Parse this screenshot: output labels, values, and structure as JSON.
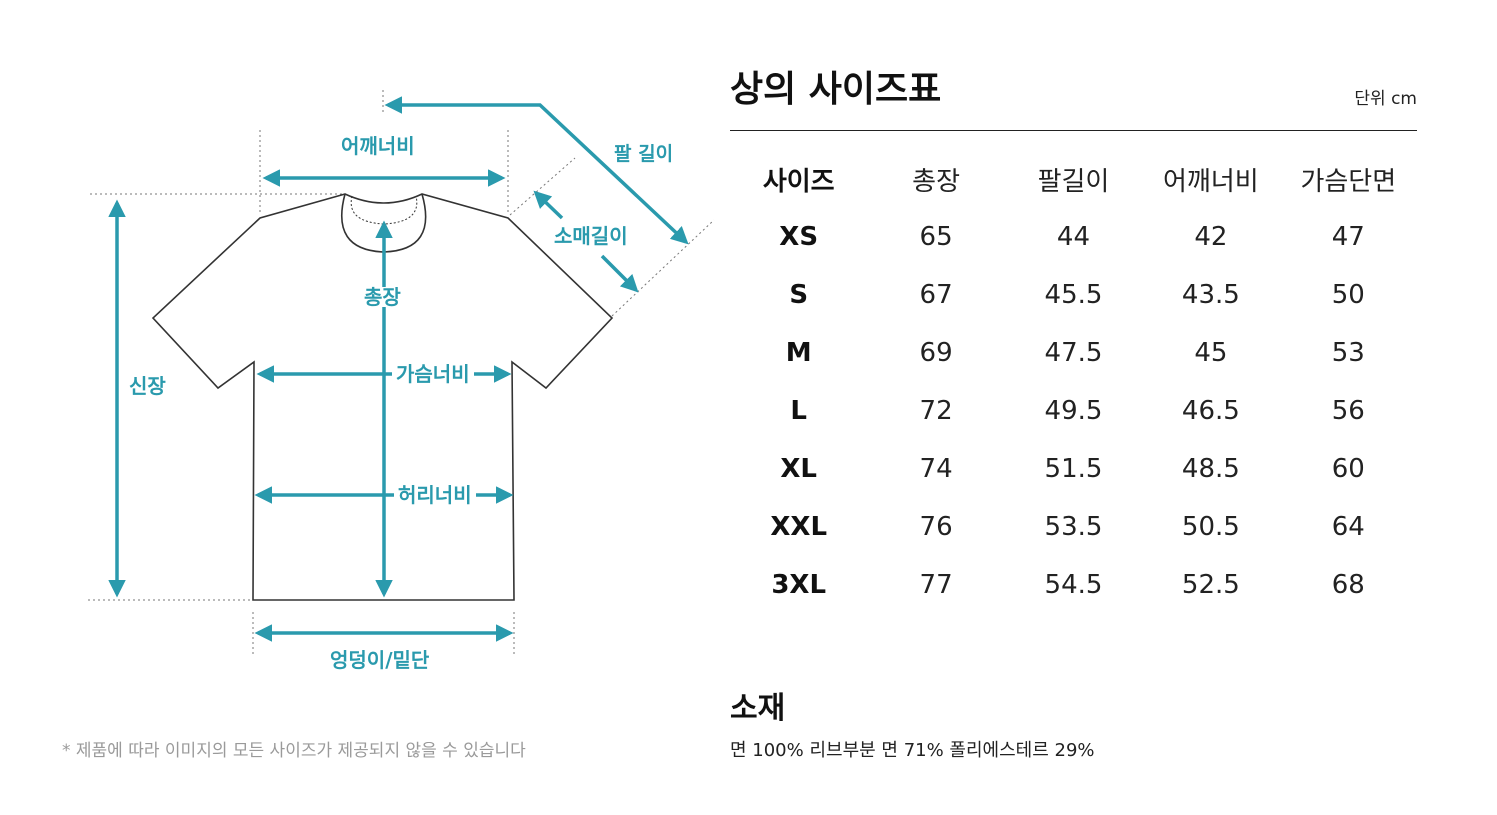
{
  "diagram": {
    "labels": {
      "shoulder": "어깨너비",
      "arm_length": "팔 길이",
      "sleeve_length": "소매길이",
      "total_length": "총장",
      "height": "신장",
      "chest": "가슴너비",
      "waist": "허리너비",
      "hem": "엉덩이/밑단"
    },
    "accent_color": "#2a9aad",
    "footnote": "* 제품에 따라 이미지의 모든 사이즈가 제공되지 않을 수 있습니다"
  },
  "size_table": {
    "title": "상의 사이즈표",
    "unit": "단위 cm",
    "headers": [
      "사이즈",
      "총장",
      "팔길이",
      "어깨너비",
      "가슴단면"
    ],
    "rows": [
      [
        "XS",
        "65",
        "44",
        "42",
        "47"
      ],
      [
        "S",
        "67",
        "45.5",
        "43.5",
        "50"
      ],
      [
        "M",
        "69",
        "47.5",
        "45",
        "53"
      ],
      [
        "L",
        "72",
        "49.5",
        "46.5",
        "56"
      ],
      [
        "XL",
        "74",
        "51.5",
        "48.5",
        "60"
      ],
      [
        "XXL",
        "76",
        "53.5",
        "50.5",
        "64"
      ],
      [
        "3XL",
        "77",
        "54.5",
        "52.5",
        "68"
      ]
    ]
  },
  "material": {
    "title": "소재",
    "text": "면 100% 리브부분 면 71% 폴리에스테르 29%"
  }
}
